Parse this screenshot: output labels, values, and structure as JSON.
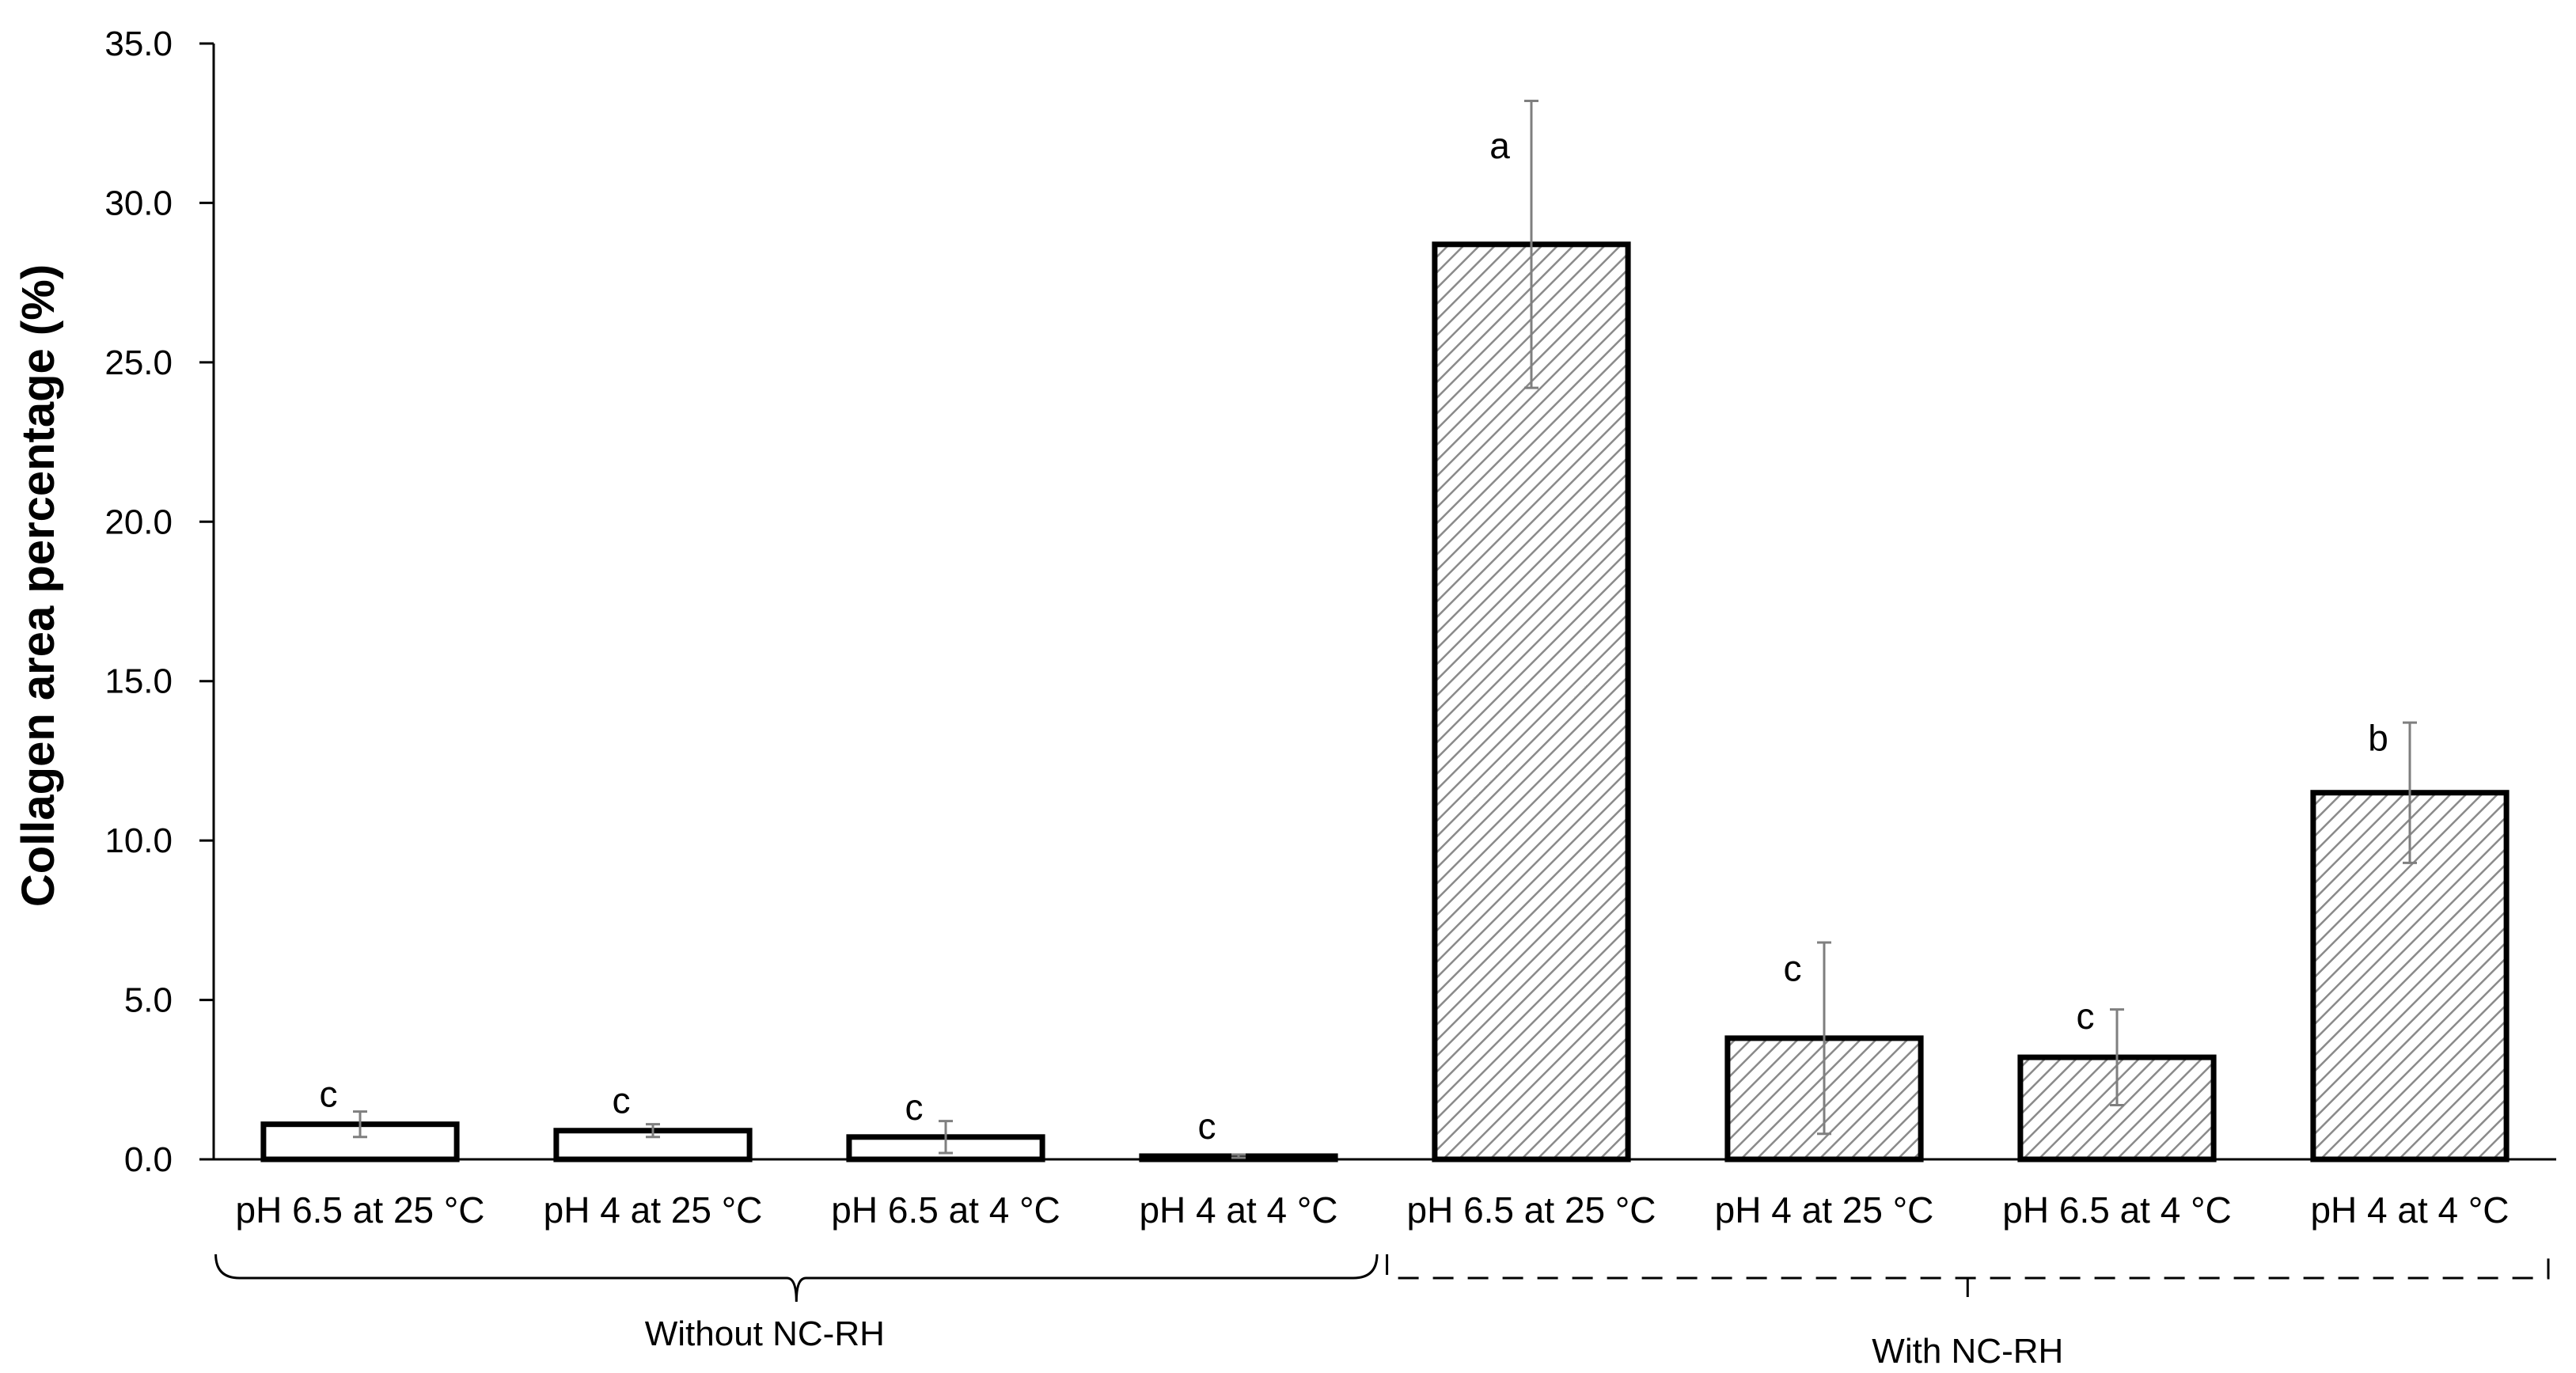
{
  "chart_data": {
    "type": "bar",
    "title": "",
    "xlabel": "",
    "ylabel": "Collagen area percentage (%)",
    "ylim": [
      0,
      35
    ],
    "yticks": [
      "0.0",
      "5.0",
      "10.0",
      "15.0",
      "20.0",
      "25.0",
      "30.0",
      "35.0"
    ],
    "grid": false,
    "categories": [
      "pH 6.5 at 25 °C",
      "pH 4 at 25 °C",
      "pH 6.5 at 4 °C",
      "pH 4 at 4 °C",
      "pH 6.5 at 25 °C",
      "pH 4 at 25 °C",
      "pH 6.5 at 4 °C",
      "pH 4 at 4 °C"
    ],
    "values": [
      1.1,
      0.9,
      0.7,
      0.1,
      28.7,
      3.8,
      3.2,
      11.5
    ],
    "errors": [
      0.4,
      0.2,
      0.5,
      0.05,
      4.5,
      3.0,
      1.5,
      2.2
    ],
    "significance": [
      "c",
      "c",
      "c",
      "c",
      "a",
      "c",
      "c",
      "b"
    ],
    "bar_style": [
      "plain",
      "plain",
      "plain",
      "plain",
      "hatched",
      "hatched",
      "hatched",
      "hatched"
    ],
    "groups": [
      {
        "label": "Without NC-RH",
        "start": 0,
        "end": 3,
        "bracket": "solid"
      },
      {
        "label": "With NC-RH",
        "start": 4,
        "end": 7,
        "bracket": "dashed"
      }
    ],
    "colors": {
      "bar_edge": "#000000",
      "hatch": "#8a8a8a",
      "error_bar": "#7f7f7f",
      "axis": "#000000"
    }
  }
}
